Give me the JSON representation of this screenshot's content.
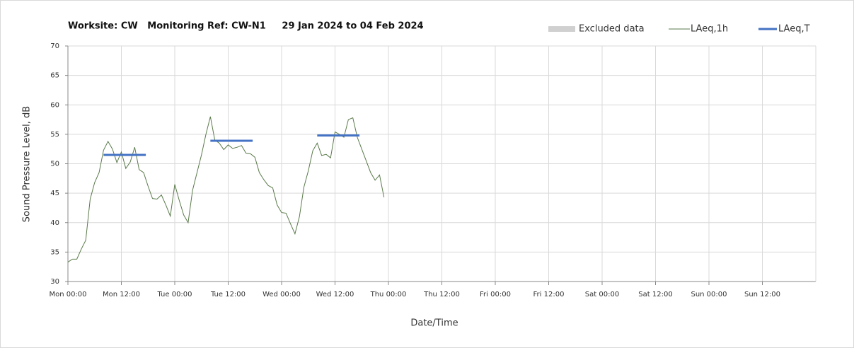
{
  "chart_data": {
    "type": "line",
    "title": "Worksite: CW   Monitoring Ref: CW-N1     29 Jan 2024 to 04 Feb 2024",
    "x_label": "Date/Time",
    "y_label": "Sound Pressure Level, dB",
    "xlim": [
      0,
      168
    ],
    "xticks": [
      {
        "value": 0,
        "label": "Mon 00:00"
      },
      {
        "value": 12,
        "label": "Mon 12:00"
      },
      {
        "value": 24,
        "label": "Tue 00:00"
      },
      {
        "value": 36,
        "label": "Tue 12:00"
      },
      {
        "value": 48,
        "label": "Wed 00:00"
      },
      {
        "value": 60,
        "label": "Wed 12:00"
      },
      {
        "value": 72,
        "label": "Thu 00:00"
      },
      {
        "value": 84,
        "label": "Thu 12:00"
      },
      {
        "value": 96,
        "label": "Fri 00:00"
      },
      {
        "value": 108,
        "label": "Fri 12:00"
      },
      {
        "value": 120,
        "label": "Sat 00:00"
      },
      {
        "value": 132,
        "label": "Sat 12:00"
      },
      {
        "value": 144,
        "label": "Sun 00:00"
      },
      {
        "value": 156,
        "label": "Sun 12:00"
      }
    ],
    "ylim": [
      30,
      70
    ],
    "yticks": [
      30,
      35,
      40,
      45,
      50,
      55,
      60,
      65,
      70
    ],
    "grid": true,
    "legend": "top-right",
    "series": [
      {
        "name": "Excluded data",
        "color": "#d0d0d0",
        "x": [],
        "values": []
      },
      {
        "name": "LAeq,1h",
        "color": "#5a7a4a",
        "x": [
          0,
          1,
          2,
          3,
          4,
          5,
          6,
          7,
          8,
          9,
          10,
          11,
          12,
          13,
          14,
          15,
          16,
          17,
          18,
          19,
          20,
          21,
          22,
          23,
          24,
          25,
          26,
          27,
          28,
          29,
          30,
          31,
          32,
          33,
          34,
          35,
          36,
          37,
          38,
          39,
          40,
          41,
          42,
          43,
          44,
          45,
          46,
          47,
          48,
          49,
          50,
          51,
          52,
          53,
          54,
          55,
          56,
          57,
          58,
          59,
          60,
          61,
          62,
          63,
          64,
          65,
          66,
          67,
          68,
          69,
          70,
          71
        ],
        "values": [
          33.3,
          33.8,
          33.8,
          35.5,
          37,
          44,
          46.8,
          48.5,
          52.3,
          53.8,
          52.5,
          50.2,
          52,
          49.2,
          50.3,
          52.8,
          49,
          48.5,
          46.2,
          44.1,
          44,
          44.7,
          43,
          41.1,
          46.5,
          43.8,
          41.3,
          40,
          45.5,
          48.5,
          51.5,
          55,
          58,
          54,
          53.5,
          52.4,
          53.2,
          52.6,
          52.8,
          53.1,
          51.8,
          51.7,
          51.1,
          48.5,
          47.3,
          46.3,
          45.9,
          43,
          41.7,
          41.6,
          39.8,
          38.1,
          41,
          46,
          48.8,
          52.2,
          53.5,
          51.4,
          51.6,
          51,
          55.4,
          55,
          54.5,
          57.5,
          57.8,
          54.5,
          52.5,
          50.5,
          48.5,
          47.2,
          48.1,
          44.3
        ]
      },
      {
        "name": "LAeq,T",
        "color": "#4472c4",
        "x": [
          8,
          17.5,
          17.5,
          32,
          41.5,
          41.5,
          56,
          65.5
        ],
        "values": [
          51.5,
          51.5,
          null,
          53.9,
          53.9,
          null,
          54.8,
          54.8
        ]
      }
    ]
  }
}
